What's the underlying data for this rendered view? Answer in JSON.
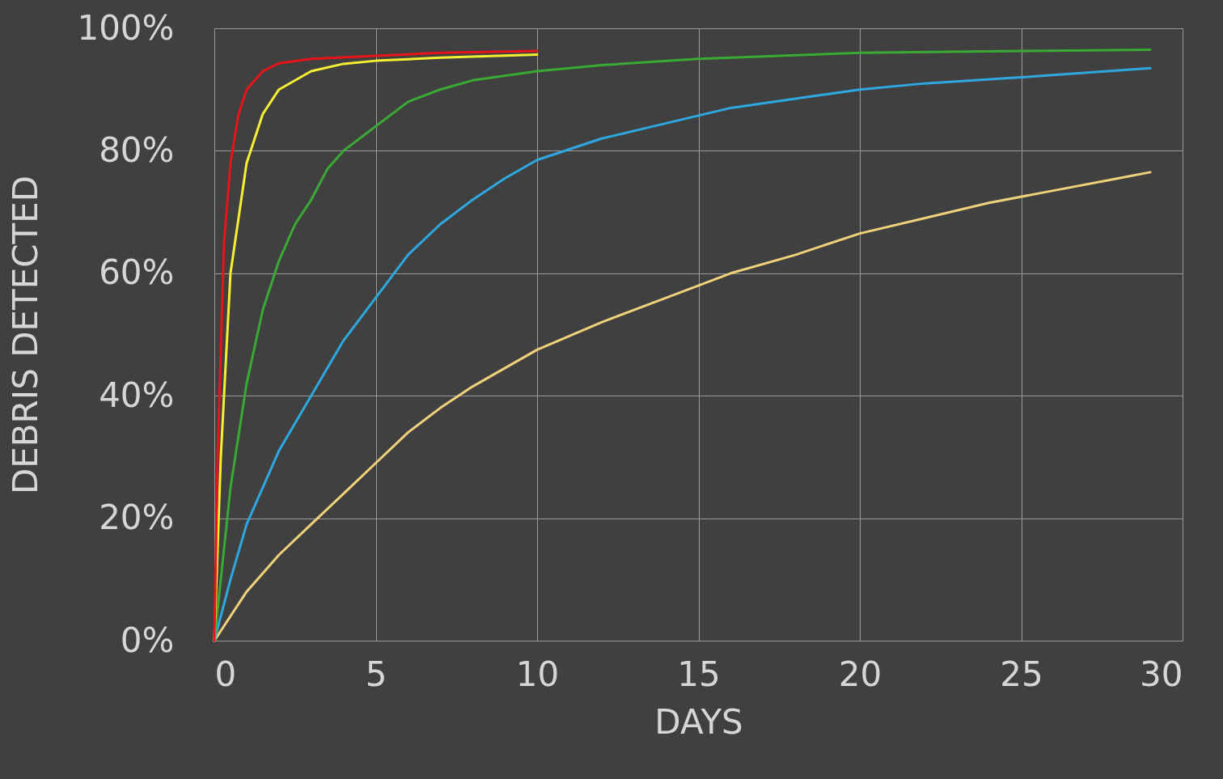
{
  "chart_data": {
    "type": "line",
    "xlabel": "DAYS",
    "ylabel": "DEBRIS DETECTED",
    "xlim": [
      0,
      30
    ],
    "xticks": [
      0,
      5,
      10,
      15,
      20,
      25,
      30
    ],
    "ylim": [
      0,
      100
    ],
    "yticks": [
      {
        "value": 0,
        "label": "0%"
      },
      {
        "value": 20,
        "label": "20%"
      },
      {
        "value": 40,
        "label": "40%"
      },
      {
        "value": 60,
        "label": "60%"
      },
      {
        "value": 80,
        "label": "80%"
      },
      {
        "value": 100,
        "label": "100%"
      }
    ],
    "grid": true,
    "legend": false,
    "marker": "none",
    "line_style": "solid",
    "series": [
      {
        "color": "#f0d27a",
        "x": [
          0,
          1,
          2,
          3,
          4,
          5,
          6,
          7,
          8,
          9,
          10,
          12,
          14,
          16,
          18,
          20,
          22,
          24,
          26,
          28,
          29
        ],
        "values": [
          0,
          8,
          14,
          19,
          24,
          29,
          34,
          38,
          41.5,
          44.5,
          47.5,
          52,
          56,
          60,
          63,
          66.5,
          69,
          71.5,
          73.5,
          75.5,
          76.5
        ]
      },
      {
        "color": "#2ea8e0",
        "x": [
          0,
          0.5,
          1,
          2,
          3,
          4,
          5,
          6,
          7,
          8,
          9,
          10,
          12,
          14,
          16,
          18,
          20,
          22,
          25,
          29
        ],
        "values": [
          0,
          10,
          19,
          31,
          40,
          49,
          56,
          63,
          68,
          72,
          75.5,
          78.5,
          82,
          84.5,
          87,
          88.5,
          90,
          91,
          92,
          93.5
        ]
      },
      {
        "color": "#3aaa35",
        "x": [
          0,
          0.5,
          1,
          1.5,
          2,
          2.5,
          3,
          3.5,
          4,
          5,
          6,
          7,
          8,
          10,
          12,
          15,
          20,
          25,
          29
        ],
        "values": [
          0,
          25,
          42,
          54,
          62,
          68,
          72,
          77,
          80,
          84,
          88,
          90,
          91.5,
          93,
          94,
          95,
          96,
          96.3,
          96.5
        ]
      },
      {
        "color": "#f5f032",
        "x": [
          0,
          0.2,
          0.5,
          1,
          1.5,
          2,
          3,
          4,
          5,
          7,
          10
        ],
        "values": [
          0,
          30,
          60,
          78,
          86,
          90,
          93,
          94.2,
          94.7,
          95.2,
          95.7
        ]
      },
      {
        "color": "#e8141b",
        "x": [
          0,
          0.1,
          0.3,
          0.5,
          0.75,
          1,
          1.5,
          2,
          3,
          5,
          7,
          10
        ],
        "values": [
          0,
          30,
          65,
          78,
          86,
          90,
          93,
          94.3,
          95,
          95.5,
          96,
          96.3
        ]
      }
    ]
  }
}
